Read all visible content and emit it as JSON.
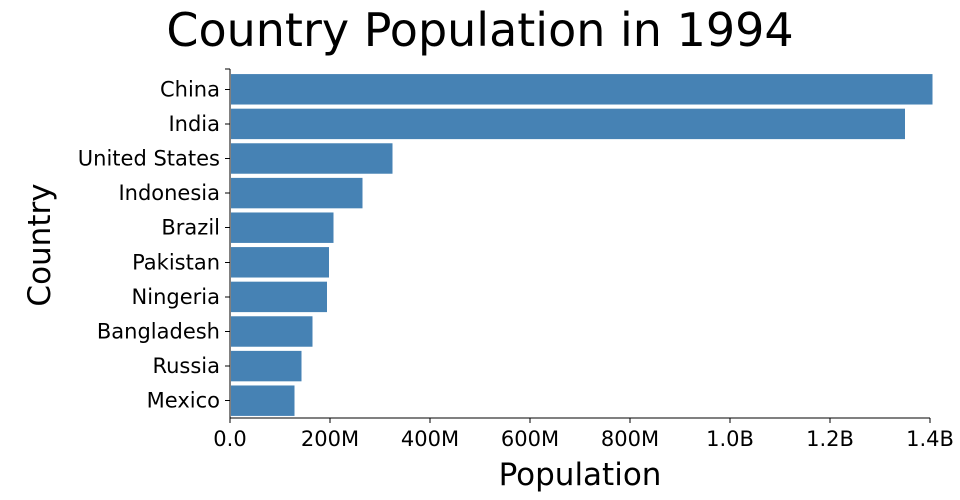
{
  "chart_data": {
    "type": "bar",
    "orientation": "horizontal",
    "title": "Country Population in 1994",
    "xlabel": "Population",
    "ylabel": "Country",
    "categories": [
      "China",
      "India",
      "United States",
      "Indonesia",
      "Brazil",
      "Pakistan",
      "Ningeria",
      "Bangladesh",
      "Russia",
      "Mexico"
    ],
    "values": [
      1405000000,
      1350000000,
      325000000,
      265000000,
      207000000,
      198000000,
      194000000,
      165000000,
      143000000,
      129000000
    ],
    "xlim": [
      0,
      1400000000
    ],
    "x_ticks": [
      0,
      200000000,
      400000000,
      600000000,
      800000000,
      1000000000,
      1200000000,
      1400000000
    ],
    "x_tick_labels": [
      "0.0",
      "200M",
      "400M",
      "600M",
      "800M",
      "1.0B",
      "1.2B",
      "1.4B"
    ],
    "grid": false,
    "legend": "none",
    "colors": {
      "bar": "#4682b4",
      "axis": "#000000",
      "background": "#ffffff"
    }
  }
}
